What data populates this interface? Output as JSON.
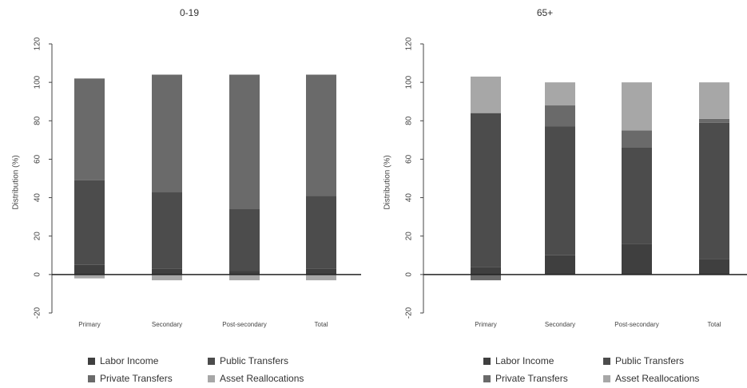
{
  "chart_data": [
    {
      "type": "bar",
      "stacked": true,
      "title": "0-19",
      "xlabel": "",
      "ylabel": "Distribution (%)",
      "ylim": [
        -20,
        120
      ],
      "yticks": [
        -20,
        0,
        20,
        40,
        60,
        80,
        100,
        120
      ],
      "categories": [
        "Primary",
        "Secondary",
        "Post-secondary",
        "Total"
      ],
      "grid": false,
      "legend_position": "bottom",
      "series": [
        {
          "name": "Labor Income",
          "color": "#3f3f3f",
          "values": [
            5,
            3,
            2,
            3
          ]
        },
        {
          "name": "Public Transfers",
          "color": "#4c4c4c",
          "values": [
            44,
            40,
            32,
            38
          ]
        },
        {
          "name": "Private Transfers",
          "color": "#6a6a6a",
          "values": [
            53,
            61,
            70,
            63
          ]
        },
        {
          "name": "Asset Reallocations",
          "color": "#a7a7a7",
          "values": [
            -2,
            -3,
            -3,
            -3
          ]
        }
      ]
    },
    {
      "type": "bar",
      "stacked": true,
      "title": "65+",
      "xlabel": "",
      "ylabel": "Distribution (%)",
      "ylim": [
        -20,
        120
      ],
      "yticks": [
        -20,
        0,
        20,
        40,
        60,
        80,
        100,
        120
      ],
      "categories": [
        "Primary",
        "Secondary",
        "Post-secondary",
        "Total"
      ],
      "grid": false,
      "legend_position": "bottom",
      "series": [
        {
          "name": "Labor Income",
          "color": "#3f3f3f",
          "values": [
            4,
            10,
            16,
            8
          ]
        },
        {
          "name": "Public Transfers",
          "color": "#4c4c4c",
          "values": [
            80,
            67,
            50,
            71
          ]
        },
        {
          "name": "Private Transfers",
          "color": "#6a6a6a",
          "values": [
            -3,
            11,
            9,
            2
          ]
        },
        {
          "name": "Asset Reallocations",
          "color": "#a7a7a7",
          "values": [
            19,
            12,
            25,
            19
          ]
        }
      ]
    }
  ]
}
